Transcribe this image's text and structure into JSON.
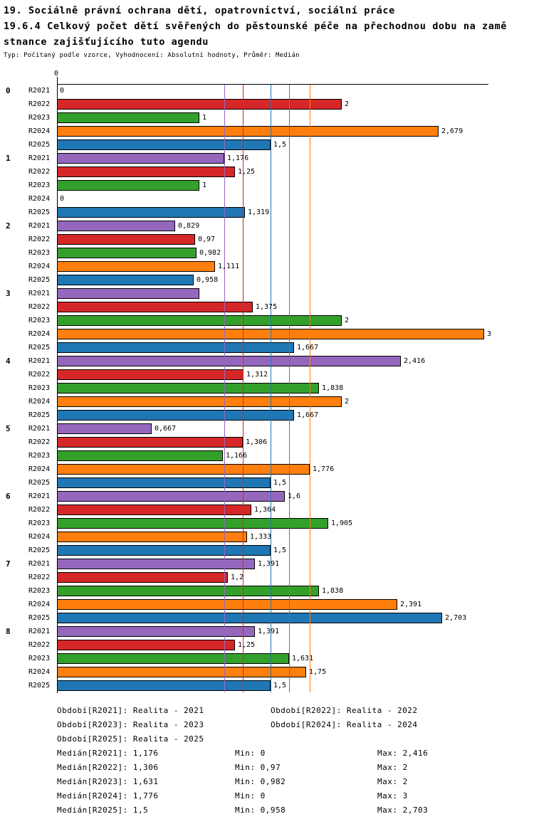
{
  "chart_data": {
    "type": "bar",
    "orientation": "horizontal",
    "title_lines": [
      "19. Sociálně právní ochrana dětí, opatrovnictví, sociální práce",
      "19.6.4 Celkový počet dětí svěřených do pěstounské péče na přechodnou dobu na zamě",
      "stnance zajišťujícího tuto agendu"
    ],
    "subtitle": "Typ: Počítaný podle vzorce, Vyhodnocení: Absolutní hodnoty, Průměr: Medián",
    "x_axis": {
      "min": 0,
      "max": 3.35,
      "tick_labels": [
        "0"
      ]
    },
    "series_colors": {
      "R2021": "#9467bd",
      "R2022": "#d62728",
      "R2023": "#33a02c",
      "R2024": "#ff7f0e",
      "R2025": "#1f77b4"
    },
    "medians": [
      {
        "series": "R2021",
        "value": 1.176
      },
      {
        "series": "R2022",
        "value": 1.306
      },
      {
        "series": "R2023",
        "value": 1.631
      },
      {
        "series": "R2024",
        "value": 1.776
      },
      {
        "series": "R2025",
        "value": 1.5
      }
    ],
    "groups": [
      {
        "label": "0",
        "bars": [
          {
            "series": "R2021",
            "value": 0,
            "label": "0"
          },
          {
            "series": "R2022",
            "value": 2,
            "label": "2"
          },
          {
            "series": "R2023",
            "value": 1,
            "label": "1"
          },
          {
            "series": "R2024",
            "value": 2.679,
            "label": "2,679"
          },
          {
            "series": "R2025",
            "value": 1.5,
            "label": "1,5"
          }
        ]
      },
      {
        "label": "1",
        "bars": [
          {
            "series": "R2021",
            "value": 1.176,
            "label": "1,176"
          },
          {
            "series": "R2022",
            "value": 1.25,
            "label": "1,25"
          },
          {
            "series": "R2023",
            "value": 1,
            "label": "1"
          },
          {
            "series": "R2024",
            "value": 0,
            "label": "0"
          },
          {
            "series": "R2025",
            "value": 1.319,
            "label": "1,319"
          }
        ]
      },
      {
        "label": "2",
        "bars": [
          {
            "series": "R2021",
            "value": 0.829,
            "label": "0,829"
          },
          {
            "series": "R2022",
            "value": 0.97,
            "label": "0,97"
          },
          {
            "series": "R2023",
            "value": 0.982,
            "label": "0,982"
          },
          {
            "series": "R2024",
            "value": 1.111,
            "label": "1,111"
          },
          {
            "series": "R2025",
            "value": 0.958,
            "label": "0,958"
          }
        ]
      },
      {
        "label": "3",
        "bars": [
          {
            "series": "R2021",
            "value": 1,
            "label": ""
          },
          {
            "series": "R2022",
            "value": 1.375,
            "label": "1,375"
          },
          {
            "series": "R2023",
            "value": 2,
            "label": "2"
          },
          {
            "series": "R2024",
            "value": 3,
            "label": "3"
          },
          {
            "series": "R2025",
            "value": 1.667,
            "label": "1,667"
          }
        ]
      },
      {
        "label": "4",
        "bars": [
          {
            "series": "R2021",
            "value": 2.416,
            "label": "2,416"
          },
          {
            "series": "R2022",
            "value": 1.312,
            "label": "1,312"
          },
          {
            "series": "R2023",
            "value": 1.838,
            "label": "1,838"
          },
          {
            "series": "R2024",
            "value": 2,
            "label": "2"
          },
          {
            "series": "R2025",
            "value": 1.667,
            "label": "1,667"
          }
        ]
      },
      {
        "label": "5",
        "bars": [
          {
            "series": "R2021",
            "value": 0.667,
            "label": "0,667"
          },
          {
            "series": "R2022",
            "value": 1.306,
            "label": "1,306"
          },
          {
            "series": "R2023",
            "value": 1.166,
            "label": "1,166"
          },
          {
            "series": "R2024",
            "value": 1.776,
            "label": "1,776"
          },
          {
            "series": "R2025",
            "value": 1.5,
            "label": "1,5"
          }
        ]
      },
      {
        "label": "6",
        "bars": [
          {
            "series": "R2021",
            "value": 1.6,
            "label": "1,6"
          },
          {
            "series": "R2022",
            "value": 1.364,
            "label": "1,364"
          },
          {
            "series": "R2023",
            "value": 1.905,
            "label": "1,905"
          },
          {
            "series": "R2024",
            "value": 1.333,
            "label": "1,333"
          },
          {
            "series": "R2025",
            "value": 1.5,
            "label": "1,5"
          }
        ]
      },
      {
        "label": "7",
        "bars": [
          {
            "series": "R2021",
            "value": 1.391,
            "label": "1,391"
          },
          {
            "series": "R2022",
            "value": 1.2,
            "label": "1,2"
          },
          {
            "series": "R2023",
            "value": 1.838,
            "label": "1,838"
          },
          {
            "series": "R2024",
            "value": 2.391,
            "label": "2,391"
          },
          {
            "series": "R2025",
            "value": 2.703,
            "label": "2,703"
          }
        ]
      },
      {
        "label": "8",
        "bars": [
          {
            "series": "R2021",
            "value": 1.391,
            "label": "1,391"
          },
          {
            "series": "R2022",
            "value": 1.25,
            "label": "1,25"
          },
          {
            "series": "R2023",
            "value": 1.631,
            "label": "1,631"
          },
          {
            "series": "R2024",
            "value": 1.75,
            "label": "1,75"
          },
          {
            "series": "R2025",
            "value": 1.5,
            "label": "1,5"
          }
        ]
      }
    ]
  },
  "legend": {
    "periods": [
      {
        "text": "Období[R2021]: Realita - 2021"
      },
      {
        "text": "Období[R2022]: Realita - 2022"
      },
      {
        "text": "Období[R2023]: Realita - 2023"
      },
      {
        "text": "Období[R2024]: Realita - 2024"
      },
      {
        "text": "Období[R2025]: Realita - 2025"
      }
    ],
    "stats": [
      {
        "median": "Medián[R2021]: 1,176",
        "min": "Min: 0",
        "max": "Max: 2,416"
      },
      {
        "median": "Medián[R2022]: 1,306",
        "min": "Min: 0,97",
        "max": "Max: 2"
      },
      {
        "median": "Medián[R2023]: 1,631",
        "min": "Min: 0,982",
        "max": "Max: 2"
      },
      {
        "median": "Medián[R2024]: 1,776",
        "min": "Min: 0",
        "max": "Max: 3"
      },
      {
        "median": "Medián[R2025]: 1,5",
        "min": "Min: 0,958",
        "max": "Max: 2,703"
      }
    ]
  }
}
